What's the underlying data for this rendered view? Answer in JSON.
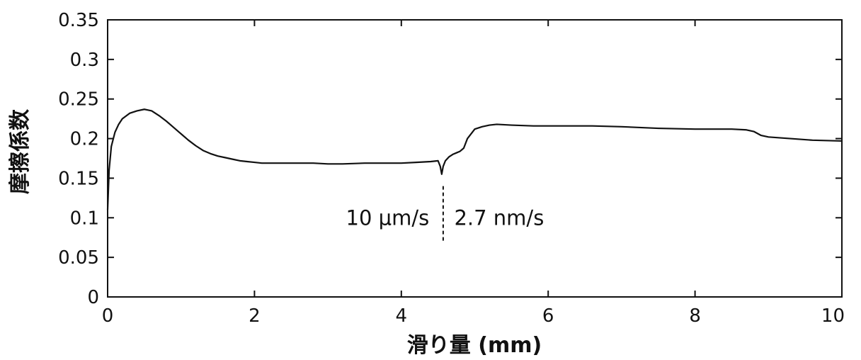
{
  "chart_data": {
    "type": "line",
    "title": "",
    "xlabel": "滑り量 (mm)",
    "ylabel": "摩擦係数",
    "xlim": [
      0,
      10
    ],
    "ylim": [
      0,
      0.35
    ],
    "x_ticks": [
      0,
      2,
      4,
      6,
      8,
      10
    ],
    "x_tick_labels": [
      "0",
      "2",
      "4",
      "6",
      "8",
      "10"
    ],
    "y_ticks": [
      0,
      0.05,
      0.1,
      0.15,
      0.2,
      0.25,
      0.3,
      0.35
    ],
    "y_tick_labels": [
      "0",
      "0.05",
      "0.1",
      "0.15",
      "0.2",
      "0.25",
      "0.3",
      "0.35"
    ],
    "grid": false,
    "series": [
      {
        "color": "#111111",
        "x": [
          0,
          0.02,
          0.05,
          0.1,
          0.15,
          0.2,
          0.3,
          0.4,
          0.5,
          0.55,
          0.6,
          0.7,
          0.8,
          0.9,
          1.0,
          1.1,
          1.2,
          1.3,
          1.4,
          1.5,
          1.6,
          1.7,
          1.8,
          1.9,
          2.0,
          2.1,
          2.3,
          2.5,
          2.8,
          3.0,
          3.2,
          3.5,
          3.8,
          4.0,
          4.2,
          4.4,
          4.5,
          4.53,
          4.55,
          4.57,
          4.6,
          4.65,
          4.7,
          4.75,
          4.8,
          4.85,
          4.9,
          5.0,
          5.1,
          5.2,
          5.3,
          5.5,
          5.8,
          6.0,
          6.3,
          6.6,
          7.0,
          7.5,
          8.0,
          8.5,
          8.7,
          8.8,
          8.9,
          9.0,
          9.3,
          9.6,
          10.0
        ],
        "y": [
          0.11,
          0.16,
          0.19,
          0.208,
          0.218,
          0.225,
          0.232,
          0.235,
          0.237,
          0.236,
          0.235,
          0.229,
          0.222,
          0.214,
          0.206,
          0.198,
          0.191,
          0.185,
          0.181,
          0.178,
          0.176,
          0.174,
          0.172,
          0.171,
          0.17,
          0.169,
          0.169,
          0.169,
          0.169,
          0.168,
          0.168,
          0.169,
          0.169,
          0.169,
          0.17,
          0.171,
          0.172,
          0.165,
          0.155,
          0.165,
          0.172,
          0.177,
          0.18,
          0.182,
          0.184,
          0.188,
          0.2,
          0.212,
          0.215,
          0.217,
          0.218,
          0.217,
          0.216,
          0.216,
          0.216,
          0.216,
          0.215,
          0.213,
          0.212,
          0.212,
          0.211,
          0.209,
          0.204,
          0.202,
          0.2,
          0.198,
          0.197
        ]
      }
    ],
    "annotations": [
      {
        "text": "10 μm/s",
        "x": 4.38,
        "y": 0.1,
        "align": "end"
      },
      {
        "text": "2.7 nm/s",
        "x": 4.72,
        "y": 0.1,
        "align": "start"
      }
    ],
    "divider": {
      "x": 4.57,
      "y_from": 0.07,
      "y_to": 0.14,
      "style": "dashed"
    }
  }
}
